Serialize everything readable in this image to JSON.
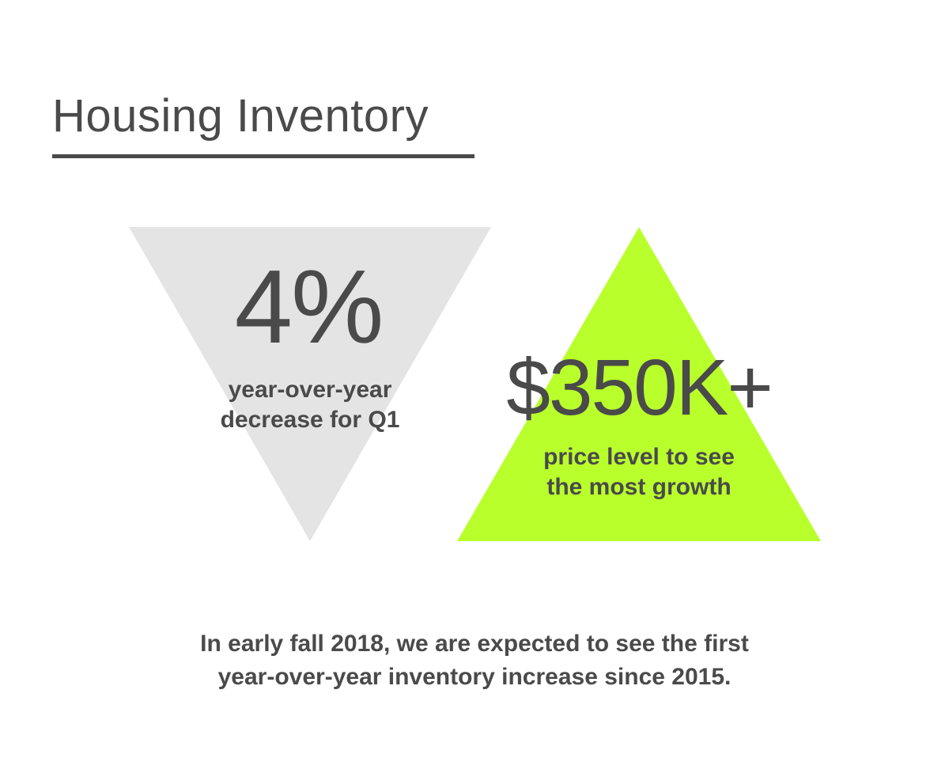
{
  "title": "Housing Inventory",
  "colors": {
    "text": "#4a4a4a",
    "down_triangle": "#e4e4e4",
    "up_triangle": "#b9ff2c"
  },
  "stats": [
    {
      "value": "4%",
      "caption_line1": "year-over-year",
      "caption_line2": "decrease for Q1",
      "shape": "down-triangle"
    },
    {
      "value": "$350K+",
      "caption_line1": "price level to see",
      "caption_line2": "the most growth",
      "shape": "up-triangle"
    }
  ],
  "footer": {
    "line1": "In early fall 2018, we are expected to see the first",
    "line2": "year-over-year inventory increase since 2015."
  }
}
